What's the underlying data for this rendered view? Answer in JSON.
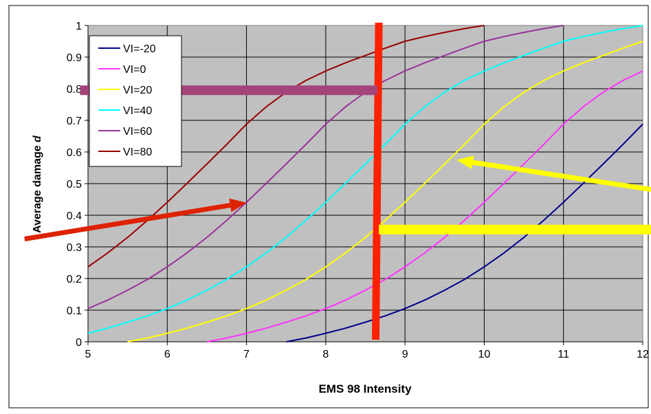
{
  "chart_data": {
    "type": "line",
    "title": "",
    "xlabel": "EMS 98 Intensity",
    "ylabel": "Average damage d",
    "ylabel_prefix": "Average damage ",
    "ylabel_var": "d",
    "xlim": [
      5,
      12
    ],
    "ylim": [
      0,
      1
    ],
    "x_ticks": [
      "5",
      "6",
      "7",
      "8",
      "9",
      "10",
      "11",
      "12"
    ],
    "y_ticks": [
      "0",
      "0.1",
      "0.2",
      "0.3",
      "0.4",
      "0.5",
      "0.6",
      "0.7",
      "0.8",
      "0.9",
      "1"
    ],
    "grid": true,
    "legend_position": "top-left",
    "series": [
      {
        "name": "VI=-20",
        "color": "#00008b",
        "x": [
          7.5,
          7.75,
          8.0,
          8.25,
          8.5,
          8.75,
          9.0,
          9.25,
          9.5,
          9.75,
          10.0,
          10.25,
          10.5,
          10.75,
          11.0,
          11.25,
          11.5,
          11.75,
          12.0
        ],
        "y": [
          0.0,
          0.012,
          0.027,
          0.043,
          0.062,
          0.082,
          0.105,
          0.132,
          0.163,
          0.197,
          0.237,
          0.281,
          0.33,
          0.384,
          0.441,
          0.501,
          0.562,
          0.624,
          0.688
        ]
      },
      {
        "name": "VI=0",
        "color": "#ff33ff",
        "x": [
          6.5,
          6.75,
          7.0,
          7.25,
          7.5,
          7.75,
          8.0,
          8.25,
          8.5,
          8.75,
          9.0,
          9.25,
          9.5,
          9.75,
          10.0,
          10.25,
          10.5,
          10.75,
          11.0,
          11.25,
          11.5,
          11.75,
          12.0
        ],
        "y": [
          0.0,
          0.012,
          0.027,
          0.043,
          0.062,
          0.082,
          0.105,
          0.132,
          0.163,
          0.197,
          0.237,
          0.281,
          0.33,
          0.384,
          0.441,
          0.501,
          0.562,
          0.624,
          0.688,
          0.743,
          0.789,
          0.826,
          0.856
        ]
      },
      {
        "name": "VI=20",
        "color": "#ffff00",
        "x": [
          5.5,
          5.75,
          6.0,
          6.25,
          6.5,
          6.75,
          7.0,
          7.25,
          7.5,
          7.75,
          8.0,
          8.25,
          8.5,
          8.75,
          9.0,
          9.25,
          9.5,
          9.75,
          10.0,
          10.25,
          10.5,
          10.75,
          11.0,
          11.25,
          11.5,
          11.75,
          12.0
        ],
        "y": [
          0.0,
          0.012,
          0.027,
          0.043,
          0.062,
          0.082,
          0.105,
          0.132,
          0.163,
          0.197,
          0.237,
          0.281,
          0.33,
          0.384,
          0.441,
          0.501,
          0.562,
          0.624,
          0.688,
          0.743,
          0.789,
          0.826,
          0.856,
          0.882,
          0.905,
          0.928,
          0.95
        ]
      },
      {
        "name": "VI=40",
        "color": "#00ffff",
        "x": [
          5.0,
          5.25,
          5.5,
          5.75,
          6.0,
          6.25,
          6.5,
          6.75,
          7.0,
          7.25,
          7.5,
          7.75,
          8.0,
          8.25,
          8.5,
          8.75,
          9.0,
          9.25,
          9.5,
          9.75,
          10.0,
          10.25,
          10.5,
          10.75,
          11.0,
          11.25,
          11.5,
          11.75,
          12.0
        ],
        "y": [
          0.027,
          0.043,
          0.062,
          0.082,
          0.105,
          0.132,
          0.163,
          0.197,
          0.237,
          0.281,
          0.33,
          0.384,
          0.441,
          0.501,
          0.562,
          0.624,
          0.688,
          0.743,
          0.789,
          0.826,
          0.856,
          0.882,
          0.905,
          0.928,
          0.95,
          0.965,
          0.978,
          0.99,
          1.0
        ]
      },
      {
        "name": "VI=60",
        "color": "#993399",
        "x": [
          5.0,
          5.25,
          5.5,
          5.75,
          6.0,
          6.25,
          6.5,
          6.75,
          7.0,
          7.25,
          7.5,
          7.75,
          8.0,
          8.25,
          8.5,
          8.75,
          9.0,
          9.25,
          9.5,
          9.75,
          10.0,
          10.25,
          10.5,
          10.75,
          11.0
        ],
        "y": [
          0.105,
          0.132,
          0.163,
          0.197,
          0.237,
          0.281,
          0.33,
          0.384,
          0.441,
          0.501,
          0.562,
          0.624,
          0.688,
          0.743,
          0.789,
          0.826,
          0.856,
          0.882,
          0.905,
          0.928,
          0.95,
          0.965,
          0.978,
          0.99,
          1.0
        ]
      },
      {
        "name": "VI=80",
        "color": "#990000",
        "x": [
          5.0,
          5.25,
          5.5,
          5.75,
          6.0,
          6.25,
          6.5,
          6.75,
          7.0,
          7.25,
          7.5,
          7.75,
          8.0,
          8.25,
          8.5,
          8.75,
          9.0,
          9.25,
          9.5,
          9.75,
          10.0
        ],
        "y": [
          0.237,
          0.281,
          0.33,
          0.384,
          0.441,
          0.501,
          0.562,
          0.624,
          0.688,
          0.743,
          0.789,
          0.826,
          0.856,
          0.882,
          0.905,
          0.928,
          0.95,
          0.965,
          0.978,
          0.99,
          1.0
        ]
      }
    ],
    "annotations": [
      {
        "kind": "vertical-line",
        "color": "#ff2200",
        "x_top": 8.67,
        "x_bottom": 8.63
      },
      {
        "kind": "horizontal-bar",
        "color": "#a3457a",
        "y": 0.795,
        "x_from": 4.9,
        "x_to": 8.65
      },
      {
        "kind": "horizontal-bar",
        "color": "#ffff00",
        "y": 0.355,
        "x_from": 8.67,
        "x_to": 12.3
      },
      {
        "kind": "arrow",
        "color": "#dd2200",
        "from": [
          4.2,
          0.325
        ],
        "to": [
          7.0,
          0.44
        ]
      },
      {
        "kind": "arrow",
        "color": "#ffff00",
        "from": [
          12.4,
          0.47
        ],
        "to": [
          9.65,
          0.575
        ]
      }
    ]
  }
}
